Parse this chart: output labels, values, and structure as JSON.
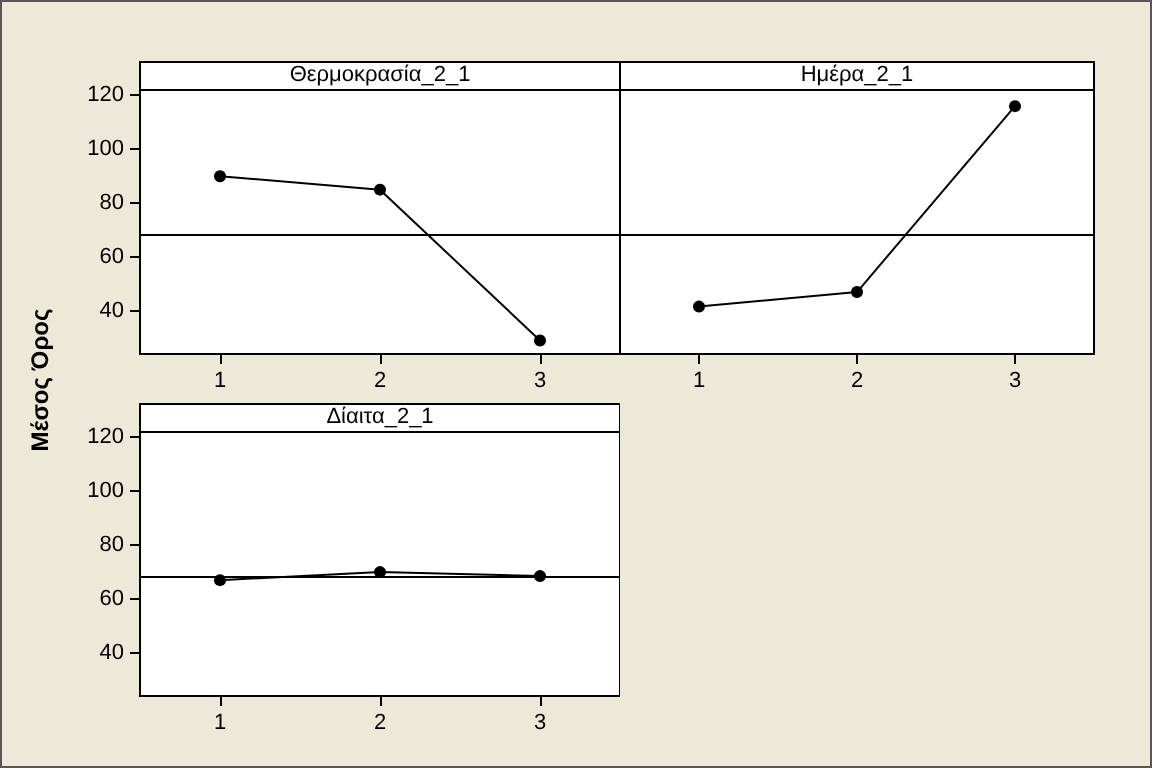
{
  "chart_data": [
    {
      "type": "line",
      "title": "Θερμοκρασία_2_1",
      "ylabel": "Μέσος Όρος",
      "categories": [
        "1",
        "2",
        "3"
      ],
      "series": [
        {
          "color": "#000000",
          "values": [
            90,
            85,
            29
          ]
        }
      ],
      "ylim": [
        24,
        122
      ],
      "yticks": [
        40,
        60,
        80,
        100,
        120
      ],
      "ref_lines": [
        {
          "axis": "y",
          "value": 68,
          "color": "#000000"
        }
      ],
      "marker": "circle",
      "grid": false
    },
    {
      "type": "line",
      "title": "Ημέρα_2_1",
      "categories": [
        "1",
        "2",
        "3"
      ],
      "series": [
        {
          "color": "#000000",
          "values": [
            41.6,
            47,
            116
          ]
        }
      ],
      "ylim": [
        24,
        122
      ],
      "yticks": [
        40,
        60,
        80,
        100,
        120
      ],
      "ref_lines": [
        {
          "axis": "y",
          "value": 68,
          "color": "#000000"
        }
      ],
      "marker": "circle",
      "grid": false,
      "tick_labels": "x"
    },
    {
      "type": "line",
      "title": "Δίαιτα_2_1",
      "categories": [
        "1",
        "2",
        "3"
      ],
      "series": [
        {
          "color": "#000000",
          "values": [
            67,
            70,
            68.5
          ]
        }
      ],
      "ylim": [
        24,
        122
      ],
      "yticks": [
        40,
        60,
        80,
        100,
        120
      ],
      "ref_lines": [
        {
          "axis": "y",
          "value": 68,
          "color": "#000000"
        }
      ],
      "marker": "circle",
      "grid": false
    }
  ]
}
